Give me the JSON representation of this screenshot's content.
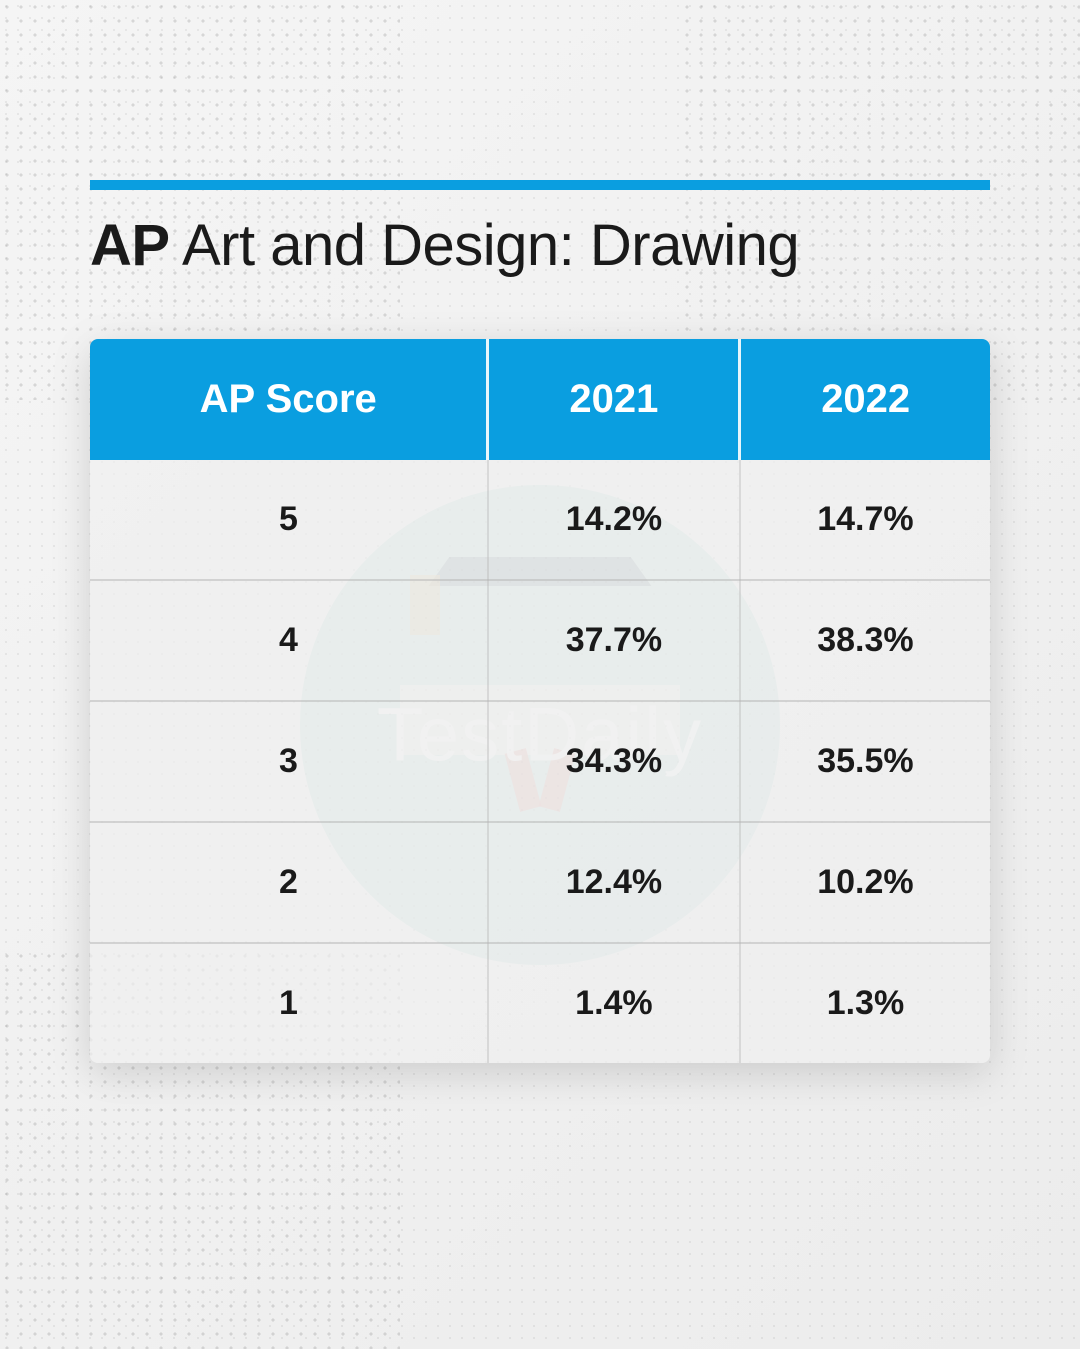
{
  "title": {
    "bold_part": "AP",
    "regular_part": " Art and Design: Drawing"
  },
  "table": {
    "type": "table",
    "header_bg_color": "#0a9ee0",
    "header_text_color": "#ffffff",
    "body_bg_color": "#f0f0f0",
    "body_text_color": "#1a1a1a",
    "border_color": "#b4b4b4",
    "header_fontsize": 40,
    "body_fontsize": 34,
    "columns": [
      "AP Score",
      "2021",
      "2022"
    ],
    "rows": [
      [
        "5",
        "14.2%",
        "14.7%"
      ],
      [
        "4",
        "37.7%",
        "38.3%"
      ],
      [
        "3",
        "34.3%",
        "35.5%"
      ],
      [
        "2",
        "12.4%",
        "10.2%"
      ],
      [
        "1",
        "1.4%",
        "1.3%"
      ]
    ]
  },
  "watermark": {
    "text": "TestDaily",
    "circle_color": "#a8d5cf",
    "text_color": "#ffffff",
    "fontsize": 76
  },
  "accent_bar_color": "#0a9ee0",
  "background_gradient": [
    "#f5f5f5",
    "#ececec"
  ]
}
